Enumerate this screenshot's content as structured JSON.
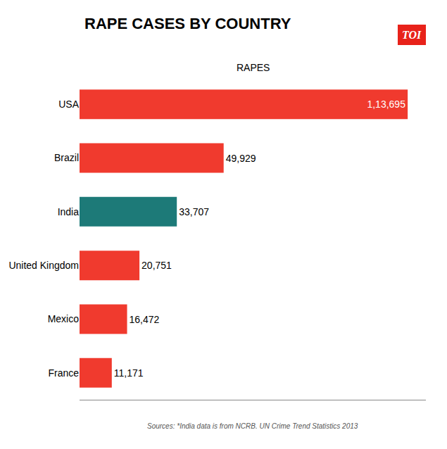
{
  "chart_data": {
    "type": "bar",
    "orientation": "horizontal",
    "title": "RAPE CASES BY COUNTRY",
    "categories": [
      "USA",
      "Brazil",
      "India",
      "United Kingdom",
      "Mexico",
      "France"
    ],
    "values": [
      113695,
      49929,
      33707,
      20751,
      16472,
      11171
    ],
    "value_labels": [
      "1,13,695",
      "49,929",
      "33,707",
      "20,751",
      "16,472",
      "11,171"
    ],
    "data_labels": true,
    "colors": [
      "#f03a2e",
      "#f03a2e",
      "#1d7a78",
      "#f03a2e",
      "#f03a2e",
      "#f03a2e"
    ],
    "xlim": [
      0,
      120000
    ],
    "grid": false,
    "tick_labels": "y",
    "annotations": [
      {
        "text": "RAPES"
      },
      {
        "text": "TOI",
        "color": "#e8221a"
      },
      {
        "text": "Sources: *India data is from NCRB. UN Crime Trend Statistics 2013"
      }
    ]
  }
}
